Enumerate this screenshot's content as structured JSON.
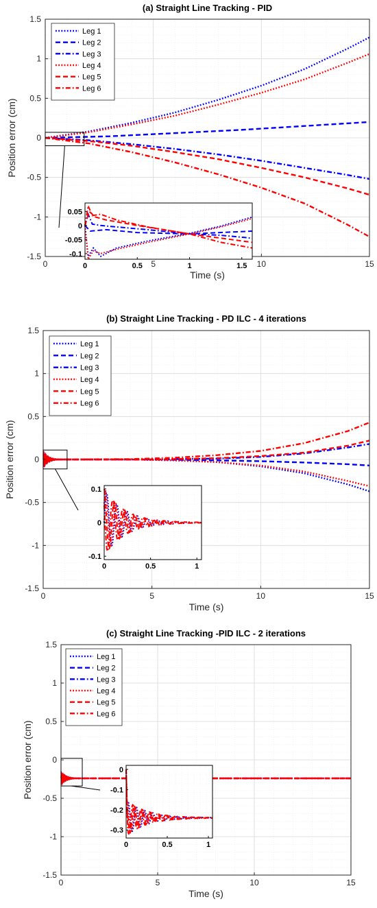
{
  "colors": {
    "blue": "#0000ff",
    "red": "#ff0000",
    "grid": "#d9d9d9",
    "minor_grid": "#ececec"
  },
  "chart_data": [
    {
      "type": "line",
      "title": "(a) Straight Line Tracking - PID",
      "xlabel": "Time (s)",
      "ylabel": "Position error (cm)",
      "xlim": [
        0,
        15
      ],
      "ylim": [
        -1.5,
        1.5
      ],
      "xticks": [
        0,
        5,
        10,
        15
      ],
      "yticks": [
        -1.5,
        -1,
        -0.5,
        0,
        0.5,
        1,
        1.5
      ],
      "grid": true,
      "legend_position": "top-left",
      "series": [
        {
          "name": "Leg 1",
          "color": "blue",
          "dash": "dotted",
          "x": [
            0,
            2,
            4,
            6,
            8,
            10,
            12,
            14,
            15
          ],
          "y": [
            0.0,
            0.08,
            0.19,
            0.32,
            0.48,
            0.66,
            0.87,
            1.13,
            1.27
          ]
        },
        {
          "name": "Leg 2",
          "color": "blue",
          "dash": "dashed",
          "x": [
            0,
            3,
            6,
            9,
            12,
            15
          ],
          "y": [
            0.0,
            0.02,
            0.06,
            0.1,
            0.15,
            0.2
          ]
        },
        {
          "name": "Leg 3",
          "color": "blue",
          "dash": "dashdot",
          "x": [
            0,
            2,
            4,
            6,
            8,
            10,
            12,
            14,
            15
          ],
          "y": [
            0.0,
            -0.03,
            -0.08,
            -0.14,
            -0.21,
            -0.29,
            -0.38,
            -0.47,
            -0.52
          ]
        },
        {
          "name": "Leg 4",
          "color": "red",
          "dash": "dotted",
          "x": [
            0,
            2,
            4,
            6,
            8,
            10,
            12,
            14,
            15
          ],
          "y": [
            0.0,
            0.07,
            0.17,
            0.28,
            0.42,
            0.57,
            0.74,
            0.95,
            1.06
          ]
        },
        {
          "name": "Leg 5",
          "color": "red",
          "dash": "dashed",
          "x": [
            0,
            2,
            4,
            6,
            8,
            10,
            12,
            14,
            15
          ],
          "y": [
            0.0,
            -0.04,
            -0.1,
            -0.18,
            -0.27,
            -0.38,
            -0.5,
            -0.64,
            -0.72
          ]
        },
        {
          "name": "Leg 6",
          "color": "red",
          "dash": "dashdot",
          "x": [
            0,
            2,
            4,
            6,
            8,
            10,
            12,
            14,
            15
          ],
          "y": [
            0.0,
            -0.07,
            -0.18,
            -0.31,
            -0.46,
            -0.63,
            -0.83,
            -1.1,
            -1.25
          ]
        }
      ],
      "inset": {
        "xlim": [
          0,
          1.6
        ],
        "ylim": [
          -0.12,
          0.08
        ],
        "xticks": [
          0,
          0.5,
          1,
          1.5
        ],
        "yticks": [
          -0.1,
          -0.05,
          0,
          0.05
        ],
        "zoom_box": {
          "xlim": [
            0,
            1.8
          ],
          "ylim": [
            -0.1,
            0.07
          ]
        },
        "series": [
          {
            "color": "blue",
            "dash": "dotted",
            "x": [
              0,
              0.03,
              0.08,
              0.15,
              0.3,
              0.6,
              1,
              1.3,
              1.6
            ],
            "y": [
              0,
              -0.11,
              -0.08,
              -0.11,
              -0.08,
              -0.055,
              -0.028,
              -0.002,
              0.03
            ]
          },
          {
            "color": "blue",
            "dash": "dashed",
            "x": [
              0,
              0.05,
              0.2,
              0.5,
              1,
              1.6
            ],
            "y": [
              0,
              -0.02,
              -0.015,
              -0.025,
              -0.03,
              -0.02
            ]
          },
          {
            "color": "blue",
            "dash": "dashdot",
            "x": [
              0,
              0.03,
              0.07,
              0.15,
              0.3,
              0.6,
              1,
              1.3,
              1.6
            ],
            "y": [
              0,
              0.04,
              0.005,
              0.0,
              -0.005,
              -0.015,
              -0.03,
              -0.035,
              -0.045
            ]
          },
          {
            "color": "red",
            "dash": "dotted",
            "x": [
              0,
              0.03,
              0.08,
              0.15,
              0.3,
              0.6,
              1,
              1.3,
              1.6
            ],
            "y": [
              0,
              -0.12,
              -0.09,
              -0.1,
              -0.085,
              -0.06,
              -0.03,
              -0.005,
              0.025
            ]
          },
          {
            "color": "red",
            "dash": "dashed",
            "x": [
              0,
              0.04,
              0.1,
              0.2,
              0.5,
              1,
              1.6
            ],
            "y": [
              0,
              0.05,
              0.03,
              0.02,
              0.0,
              -0.03,
              -0.06
            ]
          },
          {
            "color": "red",
            "dash": "dashdot",
            "x": [
              0,
              0.03,
              0.07,
              0.15,
              0.3,
              0.6,
              1,
              1.3,
              1.6
            ],
            "y": [
              0,
              0.07,
              0.035,
              0.04,
              0.02,
              -0.005,
              -0.03,
              -0.06,
              -0.08
            ]
          }
        ]
      }
    },
    {
      "type": "line",
      "title": "(b) Straight Line Tracking - PD ILC - 4 iterations",
      "xlabel": "Time (s)",
      "ylabel": "Position error (cm)",
      "xlim": [
        0,
        15
      ],
      "ylim": [
        -1.5,
        1.5
      ],
      "xticks": [
        0,
        5,
        10,
        15
      ],
      "yticks": [
        -1.5,
        -1,
        -0.5,
        0,
        0.5,
        1,
        1.5
      ],
      "grid": true,
      "legend_position": "top-left",
      "series": [
        {
          "name": "Leg 1",
          "color": "blue",
          "dash": "dotted",
          "x": [
            0,
            4,
            6,
            8,
            10,
            12,
            14,
            15
          ],
          "y": [
            0,
            0,
            -0.01,
            -0.03,
            -0.08,
            -0.16,
            -0.29,
            -0.37
          ]
        },
        {
          "name": "Leg 2",
          "color": "blue",
          "dash": "dashed",
          "x": [
            0,
            5,
            8,
            10,
            12,
            14,
            15
          ],
          "y": [
            0,
            0,
            -0.01,
            -0.02,
            -0.035,
            -0.055,
            -0.07
          ]
        },
        {
          "name": "Leg 3",
          "color": "blue",
          "dash": "dashdot",
          "x": [
            0,
            5,
            8,
            10,
            12,
            14,
            15
          ],
          "y": [
            0,
            0,
            0.01,
            0.03,
            0.07,
            0.14,
            0.18
          ]
        },
        {
          "name": "Leg 4",
          "color": "red",
          "dash": "dotted",
          "x": [
            0,
            4,
            6,
            8,
            10,
            12,
            14,
            15
          ],
          "y": [
            0,
            0,
            -0.01,
            -0.03,
            -0.07,
            -0.14,
            -0.25,
            -0.31
          ]
        },
        {
          "name": "Leg 5",
          "color": "red",
          "dash": "dashed",
          "x": [
            0,
            5,
            8,
            10,
            12,
            14,
            15
          ],
          "y": [
            0,
            0,
            0.015,
            0.04,
            0.08,
            0.16,
            0.22
          ]
        },
        {
          "name": "Leg 6",
          "color": "red",
          "dash": "dashdot",
          "x": [
            0,
            4,
            6,
            8,
            10,
            12,
            14,
            15
          ],
          "y": [
            0,
            0.005,
            0.02,
            0.05,
            0.1,
            0.19,
            0.33,
            0.43
          ]
        }
      ],
      "inset": {
        "xlim": [
          0,
          1.05
        ],
        "ylim": [
          -0.11,
          0.11
        ],
        "xticks": [
          0,
          0.5,
          1
        ],
        "yticks": [
          -0.1,
          0,
          0.1
        ],
        "zoom_box": {
          "xlim": [
            0,
            1.1
          ],
          "ylim": [
            -0.11,
            0.11
          ]
        },
        "oscillation": {
          "amplitude": 0.1,
          "period": 0.11,
          "decay": 4.5
        },
        "series": [
          {
            "color": "blue",
            "dash": "dotted",
            "phase": 0.0
          },
          {
            "color": "red",
            "dash": "dotted",
            "phase": 0.6
          },
          {
            "color": "red",
            "dash": "dashed",
            "phase": 1.6
          },
          {
            "color": "red",
            "dash": "dashdot",
            "phase": 2.6
          }
        ]
      }
    },
    {
      "type": "line",
      "title": "(c) Straight Line Tracking -PID ILC - 2 iterations",
      "xlabel": "Time (s)",
      "ylabel": "Position error (cm)",
      "xlim": [
        0,
        15
      ],
      "ylim": [
        -1.5,
        1.5
      ],
      "xticks": [
        0,
        5,
        10,
        15
      ],
      "yticks": [
        -1.5,
        -1,
        -0.5,
        0,
        0.5,
        1,
        1.5
      ],
      "grid": true,
      "legend_position": "top-left",
      "series": [
        {
          "name": "Leg 1",
          "color": "blue",
          "dash": "dotted",
          "x": [
            0,
            15
          ],
          "y": [
            -0.24,
            -0.24
          ]
        },
        {
          "name": "Leg 2",
          "color": "blue",
          "dash": "dashed",
          "x": [
            0,
            15
          ],
          "y": [
            -0.24,
            -0.24
          ]
        },
        {
          "name": "Leg 3",
          "color": "blue",
          "dash": "dashdot",
          "x": [
            0,
            15
          ],
          "y": [
            -0.24,
            -0.24
          ]
        },
        {
          "name": "Leg 4",
          "color": "red",
          "dash": "dotted",
          "x": [
            0,
            15
          ],
          "y": [
            -0.24,
            -0.24
          ]
        },
        {
          "name": "Leg 5",
          "color": "red",
          "dash": "dashed",
          "x": [
            0,
            15
          ],
          "y": [
            -0.24,
            -0.24
          ]
        },
        {
          "name": "Leg 6",
          "color": "red",
          "dash": "dashdot",
          "x": [
            0,
            15
          ],
          "y": [
            -0.24,
            -0.24
          ]
        }
      ],
      "inset": {
        "xlim": [
          0,
          1.05
        ],
        "ylim": [
          -0.34,
          0.02
        ],
        "xticks": [
          0,
          0.5,
          1
        ],
        "yticks": [
          -0.3,
          -0.2,
          -0.1,
          0
        ],
        "zoom_box": {
          "xlim": [
            0,
            1.1
          ],
          "ylim": [
            -0.34,
            0.02
          ]
        },
        "oscillation": {
          "amplitude": 0.09,
          "period": 0.1,
          "decay": 4.0,
          "offset": -0.24
        },
        "series": [
          {
            "color": "blue",
            "dash": "dotted",
            "phase": 0.0
          },
          {
            "color": "red",
            "dash": "dotted",
            "phase": 0.7
          },
          {
            "color": "red",
            "dash": "dashed",
            "phase": 1.7
          },
          {
            "color": "red",
            "dash": "dashdot",
            "phase": 2.7
          }
        ]
      }
    }
  ]
}
